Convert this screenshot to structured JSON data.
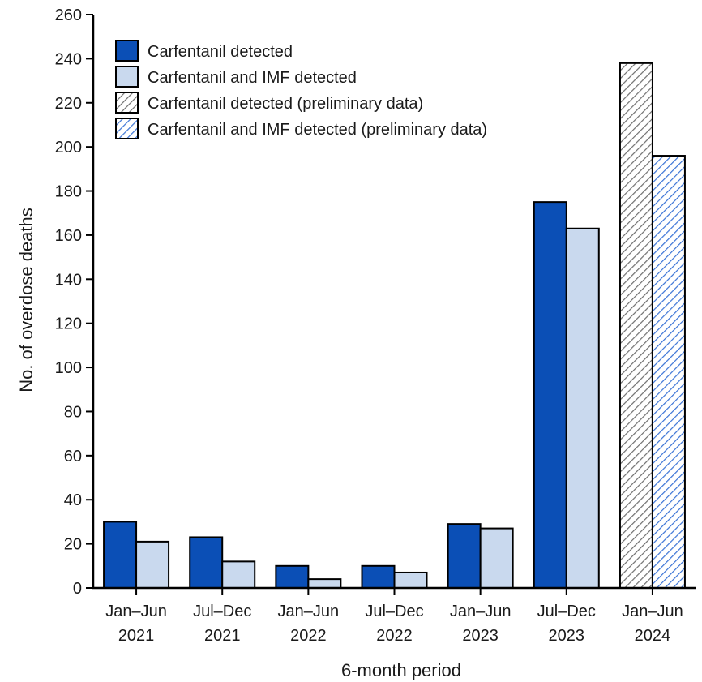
{
  "chart_data": {
    "type": "bar",
    "xlabel": "6-month period",
    "ylabel": "No. of overdose deaths",
    "ylim": [
      0,
      260
    ],
    "yticks": [
      0,
      20,
      40,
      60,
      80,
      100,
      120,
      140,
      160,
      180,
      200,
      220,
      240,
      260
    ],
    "categories": [
      [
        "Jan–Jun",
        "2021"
      ],
      [
        "Jul–Dec",
        "2021"
      ],
      [
        "Jan–Jun",
        "2022"
      ],
      [
        "Jul–Dec",
        "2022"
      ],
      [
        "Jan–Jun",
        "2023"
      ],
      [
        "Jul–Dec",
        "2023"
      ],
      [
        "Jan–Jun",
        "2024"
      ]
    ],
    "series": [
      {
        "name": "Carfentanil detected",
        "values": [
          30,
          23,
          10,
          10,
          29,
          175,
          null
        ],
        "color": "#0b4fb6",
        "pattern": "solid"
      },
      {
        "name": "Carfentanil and IMF detected",
        "values": [
          21,
          12,
          4,
          7,
          27,
          163,
          null
        ],
        "color": "#c9d9ee",
        "pattern": "solid"
      },
      {
        "name": "Carfentanil detected (preliminary data)",
        "values": [
          null,
          null,
          null,
          null,
          null,
          null,
          238
        ],
        "color": "#777777",
        "pattern": "hatch-gray"
      },
      {
        "name": "Carfentanil and IMF detected (preliminary data)",
        "values": [
          null,
          null,
          null,
          null,
          null,
          null,
          196
        ],
        "color": "#3a73d6",
        "pattern": "hatch-blue"
      }
    ],
    "legend_position": "top-left",
    "grid": false
  }
}
